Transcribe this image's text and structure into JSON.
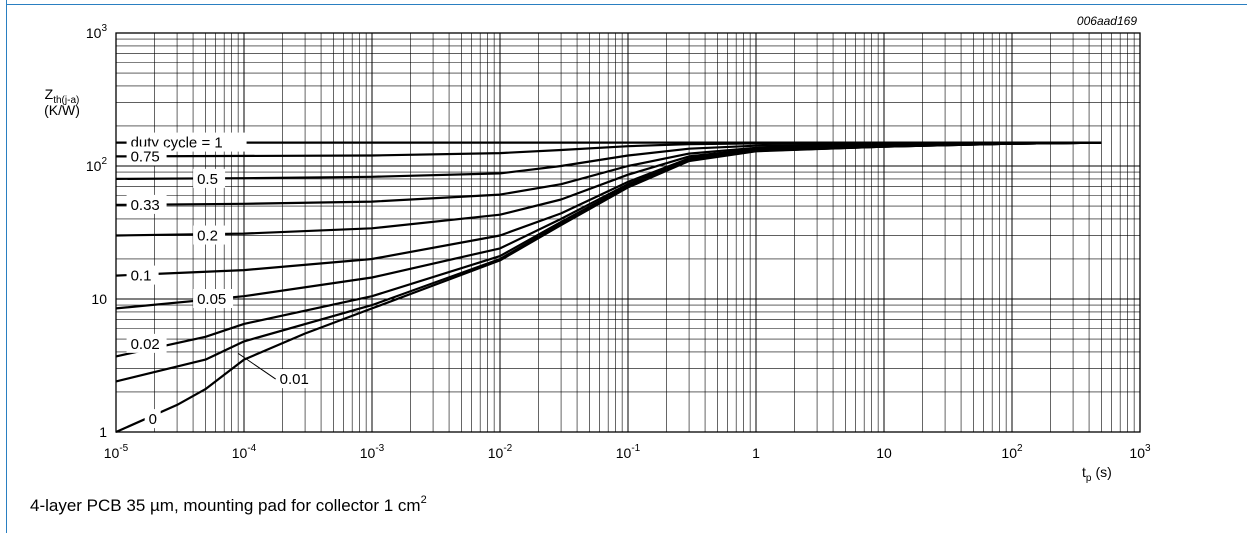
{
  "figure_id": "006aad169",
  "caption_text": "4-layer PCB 35 µm, mounting pad for collector 1 cm",
  "caption_sup": "2",
  "chart_data": {
    "type": "line",
    "x_scale": "log",
    "y_scale": "log",
    "xlim": [
      1e-05,
      1000
    ],
    "ylim": [
      1,
      1000
    ],
    "x_ticks": [
      {
        "base": "10",
        "exp": "-5"
      },
      {
        "base": "10",
        "exp": "-4"
      },
      {
        "base": "10",
        "exp": "-3"
      },
      {
        "base": "10",
        "exp": "-2"
      },
      {
        "base": "10",
        "exp": "-1"
      },
      {
        "base": "1",
        "exp": ""
      },
      {
        "base": "10",
        "exp": ""
      },
      {
        "base": "10",
        "exp": "2"
      },
      {
        "base": "10",
        "exp": "3"
      }
    ],
    "y_ticks": [
      {
        "base": "1",
        "exp": ""
      },
      {
        "base": "10",
        "exp": ""
      },
      {
        "base": "10",
        "exp": "2"
      },
      {
        "base": "10",
        "exp": "3"
      }
    ],
    "ylabel_main": "Z",
    "ylabel_sub": "th(j-a)",
    "ylabel_unit": "(K/W)",
    "xlabel_main": "t",
    "xlabel_sub": "p",
    "xlabel_unit": "(s)",
    "grid": true,
    "series": [
      {
        "name": "duty cycle = 1",
        "points": [
          [
            1e-05,
            150
          ],
          [
            0.1,
            150
          ],
          [
            1,
            150
          ],
          [
            10,
            150
          ],
          [
            100,
            150
          ],
          [
            500,
            150
          ]
        ]
      },
      {
        "name": "0.75",
        "points": [
          [
            1e-05,
            118
          ],
          [
            0.001,
            120
          ],
          [
            0.01,
            125
          ],
          [
            0.03,
            132
          ],
          [
            0.1,
            141
          ],
          [
            0.3,
            146
          ],
          [
            1,
            148
          ],
          [
            10,
            149
          ],
          [
            100,
            150
          ],
          [
            500,
            150
          ]
        ]
      },
      {
        "name": "0.5",
        "points": [
          [
            1e-05,
            80
          ],
          [
            0.0001,
            81
          ],
          [
            0.001,
            83
          ],
          [
            0.01,
            88
          ],
          [
            0.03,
            100
          ],
          [
            0.1,
            120
          ],
          [
            0.3,
            135
          ],
          [
            1,
            142
          ],
          [
            10,
            146
          ],
          [
            100,
            149
          ],
          [
            500,
            150
          ]
        ]
      },
      {
        "name": "0.33",
        "points": [
          [
            1e-05,
            51
          ],
          [
            0.0001,
            52
          ],
          [
            0.001,
            54
          ],
          [
            0.01,
            61
          ],
          [
            0.03,
            73
          ],
          [
            0.1,
            100
          ],
          [
            0.3,
            124
          ],
          [
            1,
            137
          ],
          [
            10,
            144
          ],
          [
            100,
            148
          ],
          [
            500,
            150
          ]
        ]
      },
      {
        "name": "0.2",
        "points": [
          [
            1e-05,
            30
          ],
          [
            0.0001,
            31
          ],
          [
            0.001,
            34
          ],
          [
            0.01,
            43
          ],
          [
            0.03,
            56
          ],
          [
            0.1,
            86
          ],
          [
            0.3,
            118
          ],
          [
            1,
            134
          ],
          [
            10,
            142
          ],
          [
            100,
            147
          ],
          [
            500,
            150
          ]
        ]
      },
      {
        "name": "0.1",
        "points": [
          [
            1e-05,
            15
          ],
          [
            0.0001,
            16.5
          ],
          [
            0.001,
            20
          ],
          [
            0.01,
            30
          ],
          [
            0.03,
            44
          ],
          [
            0.1,
            76
          ],
          [
            0.3,
            114
          ],
          [
            1,
            132
          ],
          [
            10,
            141
          ],
          [
            100,
            147
          ],
          [
            500,
            150
          ]
        ]
      },
      {
        "name": "0.05",
        "points": [
          [
            1e-05,
            8.5
          ],
          [
            0.0001,
            10.5
          ],
          [
            0.001,
            14.5
          ],
          [
            0.01,
            24
          ],
          [
            0.03,
            40
          ],
          [
            0.1,
            73
          ],
          [
            0.3,
            112
          ],
          [
            1,
            131
          ],
          [
            10,
            141
          ],
          [
            100,
            147
          ],
          [
            500,
            150
          ]
        ]
      },
      {
        "name": "0.02",
        "points": [
          [
            1e-05,
            3.7
          ],
          [
            5e-05,
            5.2
          ],
          [
            0.0001,
            6.5
          ],
          [
            0.001,
            10.5
          ],
          [
            0.01,
            21
          ],
          [
            0.03,
            38
          ],
          [
            0.1,
            71
          ],
          [
            0.3,
            111
          ],
          [
            1,
            130
          ],
          [
            10,
            140
          ],
          [
            100,
            147
          ],
          [
            500,
            150
          ]
        ]
      },
      {
        "name": "0.01",
        "points": [
          [
            1e-05,
            2.4
          ],
          [
            5e-05,
            3.5
          ],
          [
            0.0001,
            4.8
          ],
          [
            0.001,
            9
          ],
          [
            0.01,
            20
          ],
          [
            0.03,
            37
          ],
          [
            0.1,
            70
          ],
          [
            0.3,
            110
          ],
          [
            1,
            130
          ],
          [
            10,
            140
          ],
          [
            100,
            147
          ],
          [
            500,
            150
          ]
        ]
      },
      {
        "name": "0",
        "points": [
          [
            1e-05,
            1
          ],
          [
            3e-05,
            1.6
          ],
          [
            5e-05,
            2.1
          ],
          [
            0.0001,
            3.5
          ],
          [
            0.0003,
            5.5
          ],
          [
            0.001,
            8.5
          ],
          [
            0.01,
            19.5
          ],
          [
            0.03,
            36
          ],
          [
            0.1,
            69
          ],
          [
            0.3,
            109
          ],
          [
            1,
            129
          ],
          [
            10,
            140
          ],
          [
            100,
            147
          ],
          [
            500,
            150
          ]
        ]
      }
    ]
  }
}
